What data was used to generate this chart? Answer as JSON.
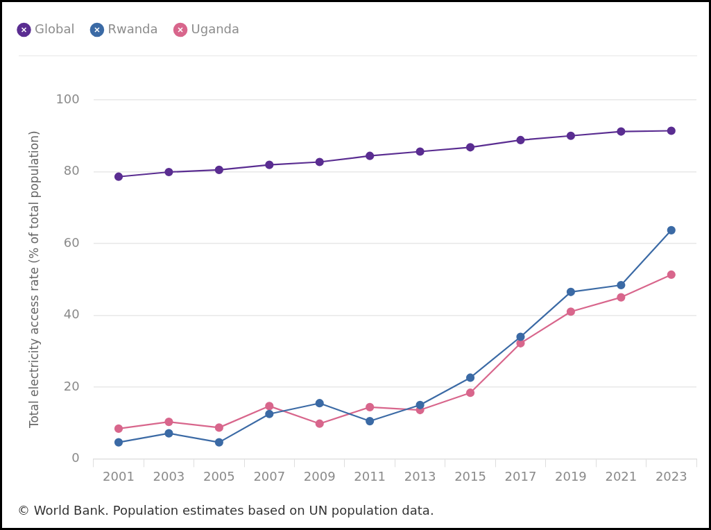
{
  "chart_data": {
    "type": "line",
    "ylabel": "Total electricity access rate (% of total population)",
    "annotations": [
      "© World Bank. Population estimates based on UN population data."
    ],
    "categories": [
      "2001",
      "2003",
      "2005",
      "2007",
      "2009",
      "2011",
      "2013",
      "2015",
      "2017",
      "2019",
      "2021",
      "2023"
    ],
    "series": [
      {
        "name": "Global",
        "color": "#5a2d91",
        "values": [
          78.6,
          79.9,
          80.5,
          81.9,
          82.7,
          84.4,
          85.6,
          86.8,
          88.8,
          90.0,
          91.2,
          91.4
        ]
      },
      {
        "name": "Rwanda",
        "color": "#3b6aa5",
        "values": [
          4.6,
          7.1,
          4.6,
          12.5,
          15.5,
          10.5,
          15.0,
          22.6,
          34.0,
          46.5,
          48.4,
          63.7
        ]
      },
      {
        "name": "Uganda",
        "color": "#d8668c",
        "values": [
          8.4,
          10.3,
          8.7,
          14.7,
          9.8,
          14.4,
          13.6,
          18.4,
          32.2,
          41.0,
          45.0,
          51.3
        ]
      }
    ],
    "ylim": [
      0,
      100
    ],
    "yticks": [
      0,
      20,
      40,
      60,
      80,
      100
    ],
    "grid": "y",
    "legend": "top left",
    "marker": "circle",
    "line_style": "solid"
  }
}
